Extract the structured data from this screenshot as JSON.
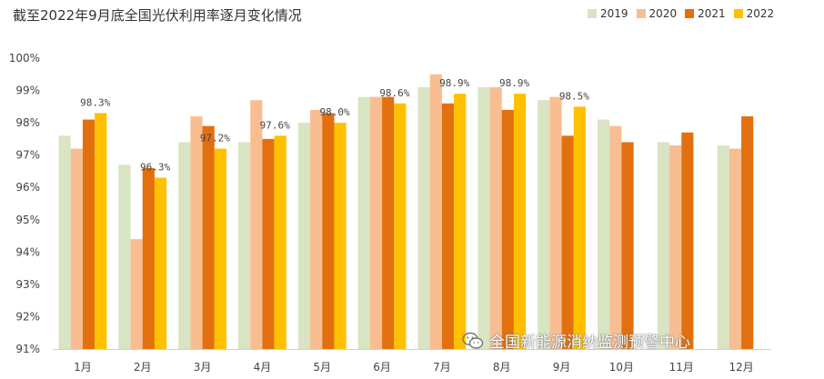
{
  "chart_data": {
    "type": "bar",
    "title": "截至2022年9月底全国光伏利用率逐月变化情况",
    "categories": [
      "1月",
      "2月",
      "3月",
      "4月",
      "5月",
      "6月",
      "7月",
      "8月",
      "9月",
      "10月",
      "11月",
      "12月"
    ],
    "series": [
      {
        "name": "2019",
        "color": "#d9e4c3",
        "values": [
          97.6,
          96.7,
          97.4,
          97.4,
          98.0,
          98.8,
          99.1,
          99.1,
          98.7,
          98.1,
          97.4,
          97.3
        ]
      },
      {
        "name": "2020",
        "color": "#f8be92",
        "values": [
          97.2,
          94.4,
          98.2,
          98.7,
          98.4,
          98.8,
          99.5,
          99.1,
          98.8,
          97.9,
          97.3,
          97.2
        ]
      },
      {
        "name": "2021",
        "color": "#e2700f",
        "values": [
          98.1,
          96.6,
          97.9,
          97.5,
          98.3,
          98.8,
          98.6,
          98.4,
          97.6,
          97.4,
          97.7,
          98.2
        ]
      },
      {
        "name": "2022",
        "color": "#ffc000",
        "values": [
          98.3,
          96.3,
          97.2,
          97.6,
          98.0,
          98.6,
          98.9,
          98.9,
          98.5,
          null,
          null,
          null
        ]
      }
    ],
    "data_labels": [
      "98.3%",
      "96.3%",
      "97.2%",
      "97.6%",
      "98.0%",
      "98.6%",
      "98.9%",
      "98.9%",
      "98.5%"
    ],
    "yticks": [
      "91%",
      "92%",
      "93%",
      "94%",
      "95%",
      "96%",
      "97%",
      "98%",
      "99%",
      "100%"
    ],
    "ylim": [
      91,
      100
    ],
    "grid": false,
    "legend_position": "top-right"
  },
  "watermark": {
    "text": "全国新能源消纳监测预警中心",
    "icon": "wechat-icon"
  }
}
